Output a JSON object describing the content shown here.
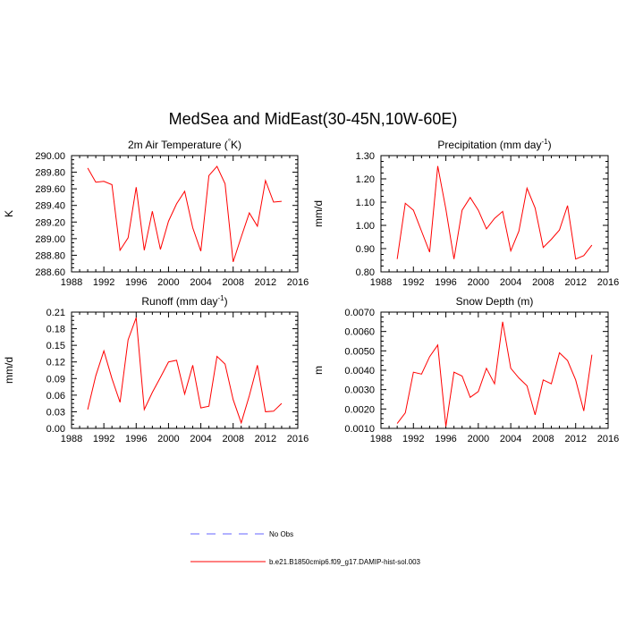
{
  "figure": {
    "title": "MedSea and MidEast(30-45N,10W-60E)"
  },
  "legend": [
    {
      "label": "No Obs",
      "color": "#6666ff",
      "dash": true
    },
    {
      "label": "b.e21.B1850cmip6.f09_g17.DAMIP-hist-sol.003",
      "color": "#ff0000",
      "dash": false
    }
  ],
  "chart_data": [
    {
      "type": "line",
      "title": "2m Air Temperature (°K)",
      "ylabel": "K",
      "xlim": [
        1988,
        2016
      ],
      "xticks": [
        "1988",
        "1992",
        "1996",
        "2000",
        "2004",
        "2008",
        "2012",
        "2016"
      ],
      "ylim": [
        288.6,
        290.0
      ],
      "yticks": [
        "288.60",
        "288.80",
        "289.00",
        "289.20",
        "289.40",
        "289.60",
        "289.80",
        "290.00"
      ],
      "x": [
        1990,
        1991,
        1992,
        1993,
        1994,
        1995,
        1996,
        1997,
        1998,
        1999,
        2000,
        2001,
        2002,
        2003,
        2004,
        2005,
        2006,
        2007,
        2008,
        2009,
        2010,
        2011,
        2012,
        2013,
        2014
      ],
      "series": [
        {
          "values": [
            289.85,
            289.68,
            289.69,
            289.65,
            288.86,
            289.01,
            289.62,
            288.86,
            289.33,
            288.87,
            289.21,
            289.42,
            289.57,
            289.13,
            288.85,
            289.76,
            289.87,
            289.66,
            288.72,
            289.02,
            289.31,
            289.15,
            289.7,
            289.44,
            289.45
          ],
          "color": "#ff0000"
        }
      ]
    },
    {
      "type": "line",
      "title": "Precipitation (mm day-1)",
      "ylabel": "mm/d",
      "xlim": [
        1988,
        2016
      ],
      "xticks": [
        "1988",
        "1992",
        "1996",
        "2000",
        "2004",
        "2008",
        "2012",
        "2016"
      ],
      "ylim": [
        0.8,
        1.3
      ],
      "yticks": [
        "0.80",
        "0.90",
        "1.00",
        "1.10",
        "1.20",
        "1.30"
      ],
      "x": [
        1990,
        1991,
        1992,
        1993,
        1994,
        1995,
        1996,
        1997,
        1998,
        1999,
        2000,
        2001,
        2002,
        2003,
        2004,
        2005,
        2006,
        2007,
        2008,
        2009,
        2010,
        2011,
        2012,
        2013,
        2014
      ],
      "series": [
        {
          "values": [
            0.855,
            1.095,
            1.065,
            0.975,
            0.885,
            1.255,
            1.07,
            0.855,
            1.065,
            1.12,
            1.065,
            0.985,
            1.03,
            1.06,
            0.89,
            0.975,
            1.16,
            1.075,
            0.905,
            0.94,
            0.98,
            1.085,
            0.855,
            0.87,
            0.915
          ],
          "color": "#ff0000"
        }
      ]
    },
    {
      "type": "line",
      "title": "Runoff (mm day-1)",
      "ylabel": "mm/d",
      "xlim": [
        1988,
        2016
      ],
      "xticks": [
        "1988",
        "1992",
        "1996",
        "2000",
        "2004",
        "2008",
        "2012",
        "2016"
      ],
      "ylim": [
        0.0,
        0.21
      ],
      "yticks": [
        "0.00",
        "0.03",
        "0.06",
        "0.09",
        "0.12",
        "0.15",
        "0.18",
        "0.21"
      ],
      "x": [
        1990,
        1991,
        1992,
        1993,
        1994,
        1995,
        1996,
        1997,
        1998,
        1999,
        2000,
        2001,
        2002,
        2003,
        2004,
        2005,
        2006,
        2007,
        2008,
        2009,
        2010,
        2011,
        2012,
        2013,
        2014
      ],
      "series": [
        {
          "values": [
            0.034,
            0.095,
            0.14,
            0.09,
            0.047,
            0.16,
            0.2,
            0.034,
            0.065,
            0.092,
            0.12,
            0.123,
            0.062,
            0.114,
            0.037,
            0.04,
            0.13,
            0.116,
            0.052,
            0.01,
            0.059,
            0.114,
            0.03,
            0.031,
            0.045
          ],
          "color": "#ff0000"
        }
      ]
    },
    {
      "type": "line",
      "title": "Snow Depth (m)",
      "ylabel": "m",
      "xlim": [
        1988,
        2016
      ],
      "xticks": [
        "1988",
        "1992",
        "1996",
        "2000",
        "2004",
        "2008",
        "2012",
        "2016"
      ],
      "ylim": [
        0.001,
        0.007
      ],
      "yticks": [
        "0.0010",
        "0.0020",
        "0.0030",
        "0.0040",
        "0.0050",
        "0.0060",
        "0.0070"
      ],
      "x": [
        1990,
        1991,
        1992,
        1993,
        1994,
        1995,
        1996,
        1997,
        1998,
        1999,
        2000,
        2001,
        2002,
        2003,
        2004,
        2005,
        2006,
        2007,
        2008,
        2009,
        2010,
        2011,
        2012,
        2013,
        2014
      ],
      "series": [
        {
          "values": [
            0.00125,
            0.0018,
            0.0039,
            0.0038,
            0.0047,
            0.0053,
            0.0011,
            0.0039,
            0.0037,
            0.0026,
            0.0029,
            0.0041,
            0.0033,
            0.0065,
            0.0041,
            0.0036,
            0.0032,
            0.0017,
            0.0035,
            0.0033,
            0.0049,
            0.0045,
            0.0035,
            0.0019,
            0.0048
          ],
          "color": "#ff0000"
        }
      ]
    }
  ]
}
